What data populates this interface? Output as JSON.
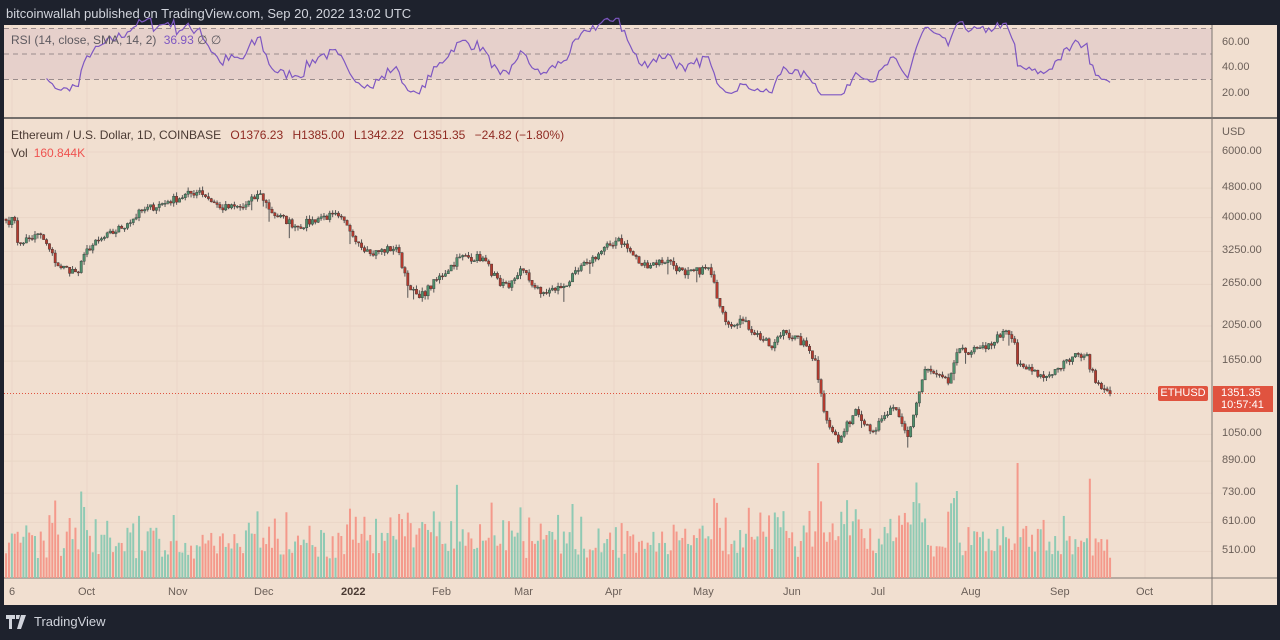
{
  "header": {
    "published": "bitcoinwallah published on TradingView.com, Sep 20, 2022 13:02 UTC"
  },
  "footer": {
    "brand": "TradingView"
  },
  "rsi": {
    "label": "RSI (14, close, SMA, 14, 2)",
    "value": "36.93",
    "extra": "∅ ∅",
    "ticks": [
      "60.00",
      "40.00",
      "20.00"
    ],
    "bands": [
      70,
      50,
      30
    ],
    "line_color": "#7e57c2"
  },
  "legend": {
    "symbol": "Ethereum / U.S. Dollar, 1D, COINBASE",
    "open": "O1376.23",
    "high": "H1385.00",
    "low": "L1342.22",
    "close": "C1351.35",
    "change": "−24.82 (−1.80%)",
    "vol_label": "Vol",
    "vol_value": "160.844K"
  },
  "price_axis": {
    "unit": "USD",
    "ticks": [
      "6000.00",
      "4800.00",
      "4000.00",
      "3250.00",
      "2650.00",
      "2050.00",
      "1650.00",
      "1050.00",
      "890.00",
      "730.00",
      "610.00",
      "510.00"
    ],
    "scale": "log"
  },
  "last_price": {
    "symbol": "ETHUSD",
    "price": "1351.35",
    "countdown": "10:57:41"
  },
  "time_axis": {
    "ticks": [
      "6",
      "Oct",
      "Nov",
      "Dec",
      "2022",
      "Feb",
      "Mar",
      "Apr",
      "May",
      "Jun",
      "Jul",
      "Aug",
      "Sep",
      "Oct"
    ]
  },
  "colors": {
    "background": "#f1dfd0",
    "up": "#4e8f6c",
    "down": "#b33a2e",
    "vol_up": "#8fcab4",
    "vol_down": "#f4998b",
    "accent": "#e0533f"
  },
  "chart_data": {
    "type": "candlestick",
    "interval": "1D",
    "yscale": "log",
    "ylim": [
      440,
      6500
    ],
    "grid": true,
    "closes": [
      [
        "2021-09-03",
        3930
      ],
      [
        "2021-09-06",
        3930
      ],
      [
        "2021-09-07",
        3430
      ],
      [
        "2021-09-15",
        3600
      ],
      [
        "2021-09-21",
        2970
      ],
      [
        "2021-09-28",
        2850
      ],
      [
        "2021-10-01",
        3300
      ],
      [
        "2021-10-15",
        3860
      ],
      [
        "2021-10-20",
        4170
      ],
      [
        "2021-10-29",
        4420
      ],
      [
        "2021-11-09",
        4730
      ],
      [
        "2021-11-16",
        4250
      ],
      [
        "2021-11-24",
        4270
      ],
      [
        "2021-11-30",
        4640
      ],
      [
        "2021-12-04",
        4120
      ],
      [
        "2021-12-13",
        3780
      ],
      [
        "2021-12-21",
        4020
      ],
      [
        "2021-12-27",
        4040
      ],
      [
        "2021-12-31",
        3680
      ],
      [
        "2022-01-07",
        3200
      ],
      [
        "2022-01-16",
        3330
      ],
      [
        "2022-01-21",
        2560
      ],
      [
        "2022-01-24",
        2440
      ],
      [
        "2022-02-07",
        3140
      ],
      [
        "2022-02-15",
        3120
      ],
      [
        "2022-02-21",
        2630
      ],
      [
        "2022-02-24",
        2600
      ],
      [
        "2022-02-28",
        2920
      ],
      [
        "2022-03-07",
        2500
      ],
      [
        "2022-03-15",
        2620
      ],
      [
        "2022-03-23",
        3030
      ],
      [
        "2022-04-03",
        3520
      ],
      [
        "2022-04-11",
        2980
      ],
      [
        "2022-04-20",
        3080
      ],
      [
        "2022-04-26",
        2810
      ],
      [
        "2022-05-04",
        2940
      ],
      [
        "2022-05-09",
        2230
      ],
      [
        "2022-05-11",
        2070
      ],
      [
        "2022-05-15",
        2140
      ],
      [
        "2022-05-26",
        1790
      ],
      [
        "2022-05-30",
        1995
      ],
      [
        "2022-06-07",
        1810
      ],
      [
        "2022-06-10",
        1660
      ],
      [
        "2022-06-13",
        1210
      ],
      [
        "2022-06-18",
        1000
      ],
      [
        "2022-06-24",
        1225
      ],
      [
        "2022-06-30",
        1070
      ],
      [
        "2022-07-07",
        1240
      ],
      [
        "2022-07-12",
        1035
      ],
      [
        "2022-07-18",
        1570
      ],
      [
        "2022-07-26",
        1440
      ],
      [
        "2022-07-29",
        1740
      ],
      [
        "2022-08-08",
        1780
      ],
      [
        "2022-08-14",
        1985
      ],
      [
        "2022-08-18",
        1850
      ],
      [
        "2022-08-19",
        1620
      ],
      [
        "2022-08-28",
        1490
      ],
      [
        "2022-09-02",
        1580
      ],
      [
        "2022-09-09",
        1720
      ],
      [
        "2022-09-12",
        1720
      ],
      [
        "2022-09-13",
        1570
      ],
      [
        "2022-09-16",
        1440
      ],
      [
        "2022-09-19",
        1376.23
      ],
      [
        "2022-09-20",
        1351.35
      ]
    ]
  }
}
